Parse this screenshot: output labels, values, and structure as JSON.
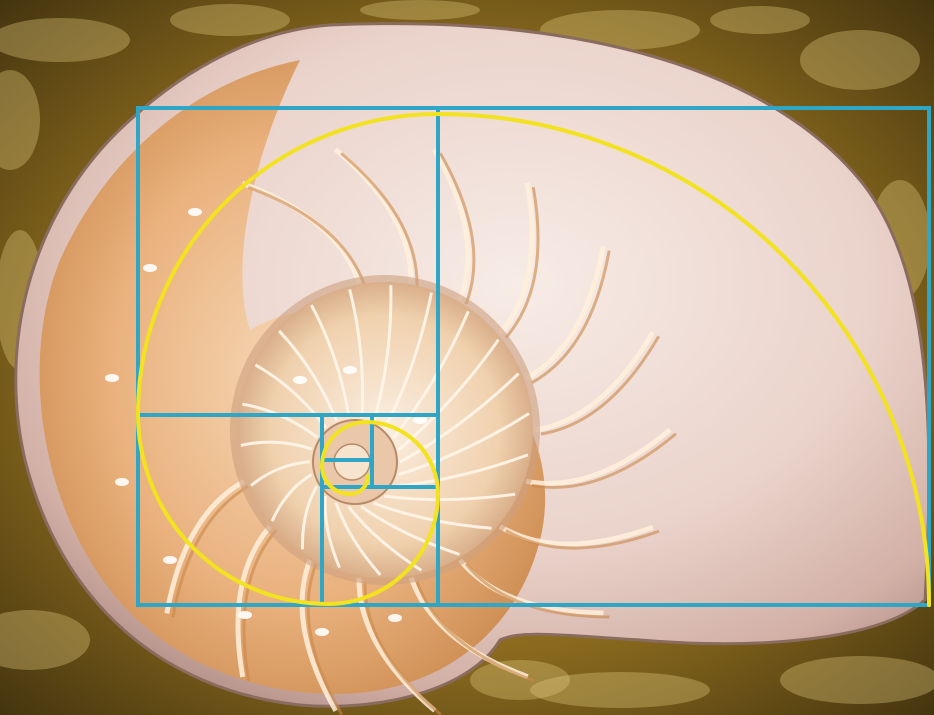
{
  "scene": {
    "subject": "nautilus-shell-cross-section",
    "overlay": "golden-rectangle-fibonacci-spiral",
    "colors": {
      "background_dark": "#3a2c0c",
      "background_gold": "#b08a2e",
      "background_highlight": "#e6cf82",
      "shell_outer": "#f3e3d8",
      "shell_shadow": "#c8a6a0",
      "chamber_light": "#f6cfa0",
      "chamber_mid": "#e8a766",
      "chamber_dark": "#c98748",
      "septum": "#fff0dc",
      "grid_lines": "#2fa6c6",
      "spiral": "#f2e21f"
    }
  }
}
